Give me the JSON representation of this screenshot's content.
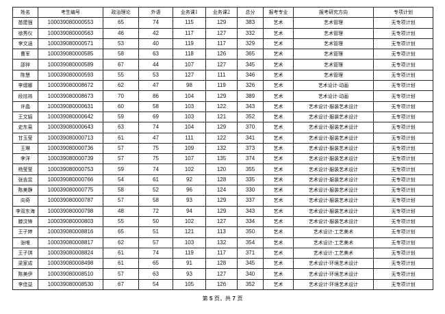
{
  "headers": [
    "姓名",
    "考生编号",
    "政治理论",
    "外语",
    "业务课1",
    "业务课2",
    "总分",
    "报考专业",
    "报考研究方向",
    "专项计划"
  ],
  "rows": [
    [
      "苗建强",
      "100039080000553",
      "65",
      "74",
      "115",
      "129",
      "383",
      "艺术",
      "艺术管理",
      "无专项计划"
    ],
    [
      "徐秀仪",
      "100039080000563",
      "46",
      "42",
      "117",
      "127",
      "332",
      "艺术",
      "艺术管理",
      "无专项计划"
    ],
    [
      "李文涵",
      "100039080000571",
      "53",
      "40",
      "119",
      "117",
      "329",
      "艺术",
      "艺术管理",
      "无专项计划"
    ],
    [
      "曹军",
      "100039080000585",
      "58",
      "63",
      "118",
      "126",
      "365",
      "艺术",
      "艺术管理",
      "无专项计划"
    ],
    [
      "邵祥",
      "100039080000589",
      "67",
      "44",
      "107",
      "127",
      "345",
      "艺术",
      "艺术管理",
      "无专项计划"
    ],
    [
      "陈慧",
      "100039080000593",
      "55",
      "53",
      "127",
      "111",
      "346",
      "艺术",
      "艺术管理",
      "无专项计划"
    ],
    [
      "李熠娜",
      "100039080008672",
      "62",
      "47",
      "98",
      "119",
      "326",
      "艺术",
      "艺术设计-动画",
      "无专项计划"
    ],
    [
      "段炫祎",
      "100039080008673",
      "70",
      "86",
      "104",
      "129",
      "389",
      "艺术",
      "艺术设计-动画",
      "无专项计划"
    ],
    [
      "许晶",
      "100039080000631",
      "60",
      "58",
      "103",
      "122",
      "343",
      "艺术",
      "艺术设计-服装艺术设计",
      "无专项计划"
    ],
    [
      "王文娟",
      "100039080000642",
      "59",
      "69",
      "103",
      "121",
      "352",
      "艺术",
      "艺术设计-服装艺术设计",
      "无专项计划"
    ],
    [
      "史东易",
      "100039080000643",
      "63",
      "74",
      "104",
      "129",
      "370",
      "艺术",
      "艺术设计-服装艺术设计",
      "无专项计划"
    ],
    [
      "甘玉莹",
      "100039080000713",
      "61",
      "47",
      "111",
      "122",
      "341",
      "艺术",
      "艺术设计-服装艺术设计",
      "无专项计划"
    ],
    [
      "王琳",
      "100039080000736",
      "57",
      "75",
      "109",
      "132",
      "373",
      "艺术",
      "艺术设计-服装艺术设计",
      "无专项计划"
    ],
    [
      "李洋",
      "100039080000739",
      "57",
      "75",
      "107",
      "135",
      "374",
      "艺术",
      "艺术设计-服装艺术设计",
      "无专项计划"
    ],
    [
      "杨莹莹",
      "100039080000753",
      "59",
      "74",
      "102",
      "120",
      "355",
      "艺术",
      "艺术设计-服装艺术设计",
      "无专项计划"
    ],
    [
      "张吉昱",
      "100039080000766",
      "54",
      "61",
      "92",
      "128",
      "335",
      "艺术",
      "艺术设计-服装艺术设计",
      "无专项计划"
    ],
    [
      "陈美静",
      "100039080000775",
      "58",
      "52",
      "96",
      "124",
      "330",
      "艺术",
      "艺术设计-服装艺术设计",
      "无专项计划"
    ],
    [
      "向奇",
      "100039080000787",
      "57",
      "58",
      "93",
      "129",
      "337",
      "艺术",
      "艺术设计-服装艺术设计",
      "无专项计划"
    ],
    [
      "李双东海",
      "100039080000798",
      "48",
      "72",
      "94",
      "129",
      "343",
      "艺术",
      "艺术设计-服装艺术设计",
      "无专项计划"
    ],
    [
      "滕汶锋",
      "100039080000803",
      "55",
      "50",
      "102",
      "127",
      "334",
      "艺术",
      "艺术设计-服装艺术设计",
      "无专项计划"
    ],
    [
      "王子婷",
      "100039080008816",
      "65",
      "51",
      "121",
      "113",
      "350",
      "艺术",
      "艺术设计-工艺美术",
      "无专项计划"
    ],
    [
      "张唯",
      "100039080008817",
      "62",
      "57",
      "103",
      "132",
      "354",
      "艺术",
      "艺术设计-工艺美术",
      "无专项计划"
    ],
    [
      "王子琪",
      "100039080008824",
      "61",
      "74",
      "119",
      "117",
      "371",
      "艺术",
      "艺术设计-工艺美术",
      "无专项计划"
    ],
    [
      "梁家成",
      "100039080008498",
      "61",
      "65",
      "91",
      "128",
      "345",
      "艺术",
      "艺术设计-环境艺术设计",
      "无专项计划"
    ],
    [
      "陈美伊",
      "100039080008510",
      "57",
      "63",
      "93",
      "127",
      "340",
      "艺术",
      "艺术设计-环境艺术设计",
      "无专项计划"
    ],
    [
      "李佳益",
      "100039080008530",
      "67",
      "54",
      "105",
      "126",
      "352",
      "艺术",
      "艺术设计-环境艺术设计",
      "无专项计划"
    ]
  ],
  "footer": {
    "prefix": "第 ",
    "page": "5",
    "middle": " 页，共 ",
    "total": "7",
    "suffix": " 页"
  }
}
